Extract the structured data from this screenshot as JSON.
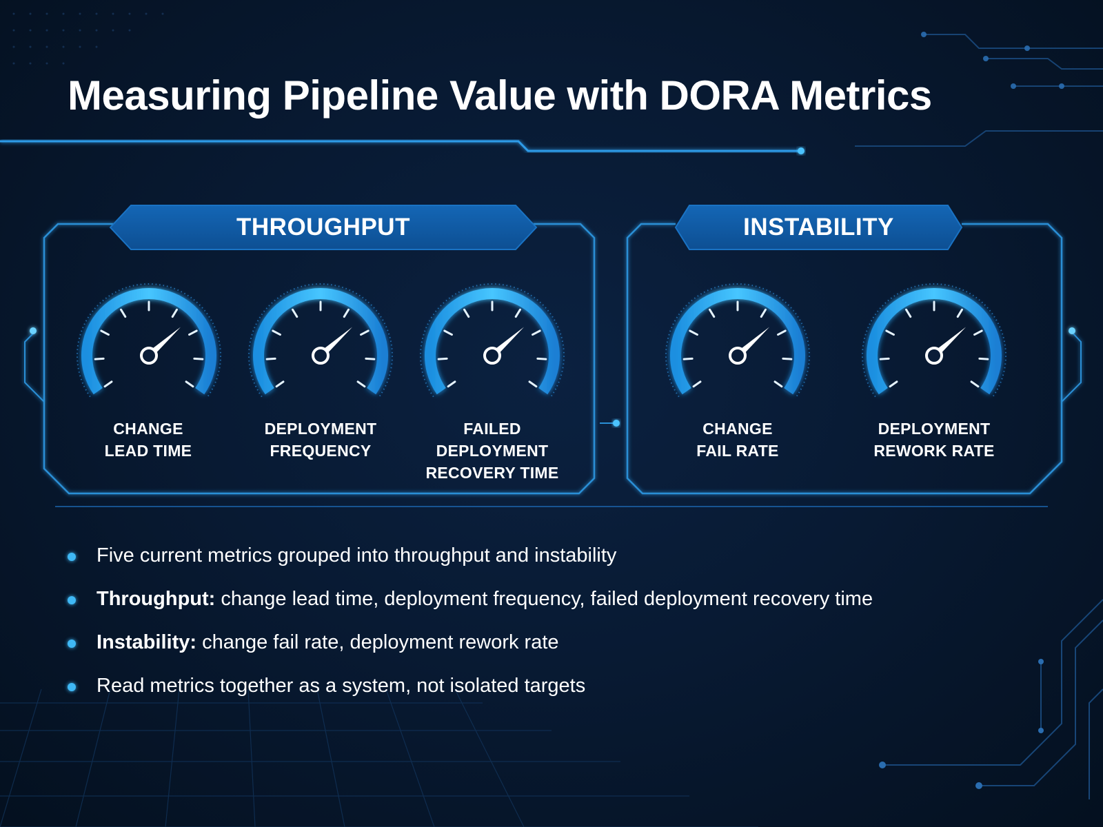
{
  "title": "Measuring Pipeline Value with DORA Metrics",
  "colors": {
    "background": "#081a33",
    "accent": "#2fa8ee",
    "panel_border": "#2a8fd6",
    "tab_fill": "#0f5ba3"
  },
  "groups": {
    "throughput": {
      "label": "THROUGHPUT",
      "metrics": [
        {
          "lines": [
            "CHANGE",
            "LEAD TIME"
          ]
        },
        {
          "lines": [
            "DEPLOYMENT",
            "FREQUENCY"
          ]
        },
        {
          "lines": [
            "FAILED",
            "DEPLOYMENT",
            "RECOVERY TIME"
          ]
        }
      ]
    },
    "instability": {
      "label": "INSTABILITY",
      "metrics": [
        {
          "lines": [
            "CHANGE",
            "FAIL RATE"
          ]
        },
        {
          "lines": [
            "DEPLOYMENT",
            "REWORK RATE"
          ]
        }
      ]
    }
  },
  "bullets": [
    {
      "bold": "",
      "text": "Five current metrics grouped into throughput and instability"
    },
    {
      "bold": "Throughput:",
      "text": " change lead time, deployment frequency, failed deployment recovery time"
    },
    {
      "bold": "Instability:",
      "text": " change fail rate, deployment rework rate"
    },
    {
      "bold": "",
      "text": "Read metrics together as a system, not isolated targets"
    }
  ],
  "icons": {
    "gauge": "speedometer-icon",
    "bullet": "bullet-dot"
  }
}
